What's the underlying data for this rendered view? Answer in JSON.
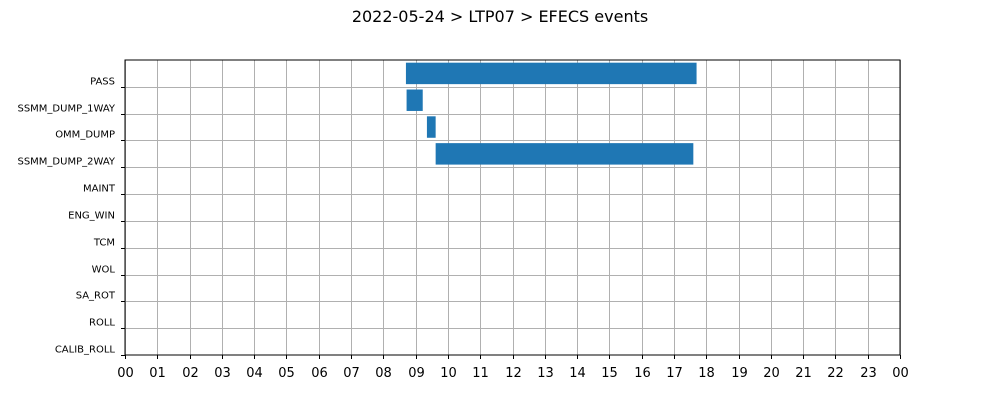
{
  "chart_data": {
    "type": "bar",
    "orientation": "horizontal-gantt",
    "title": "2022-05-24 > LTP07 > EFECS events",
    "xlabel": "",
    "ylabel": "",
    "xlim": [
      0,
      24
    ],
    "grid": true,
    "bar_color": "#1f77b4",
    "x_tick_values": [
      0,
      1,
      2,
      3,
      4,
      5,
      6,
      7,
      8,
      9,
      10,
      11,
      12,
      13,
      14,
      15,
      16,
      17,
      18,
      19,
      20,
      21,
      22,
      23,
      24
    ],
    "x_tick_labels": [
      "00",
      "01",
      "02",
      "03",
      "04",
      "05",
      "06",
      "07",
      "08",
      "09",
      "10",
      "11",
      "12",
      "13",
      "14",
      "15",
      "16",
      "17",
      "18",
      "19",
      "20",
      "21",
      "22",
      "23",
      "00"
    ],
    "categories": [
      "PASS",
      "SSMM_DUMP_1WAY",
      "OMM_DUMP",
      "SSMM_DUMP_2WAY",
      "MAINT",
      "ENG_WIN",
      "TCM",
      "WOL",
      "SA_ROT",
      "ROLL",
      "CALIB_ROLL"
    ],
    "events": [
      {
        "category": "PASS",
        "start": 8.7,
        "end": 17.7
      },
      {
        "category": "SSMM_DUMP_1WAY",
        "start": 8.72,
        "end": 9.22
      },
      {
        "category": "OMM_DUMP",
        "start": 9.35,
        "end": 9.62
      },
      {
        "category": "SSMM_DUMP_2WAY",
        "start": 9.62,
        "end": 17.6
      }
    ]
  }
}
